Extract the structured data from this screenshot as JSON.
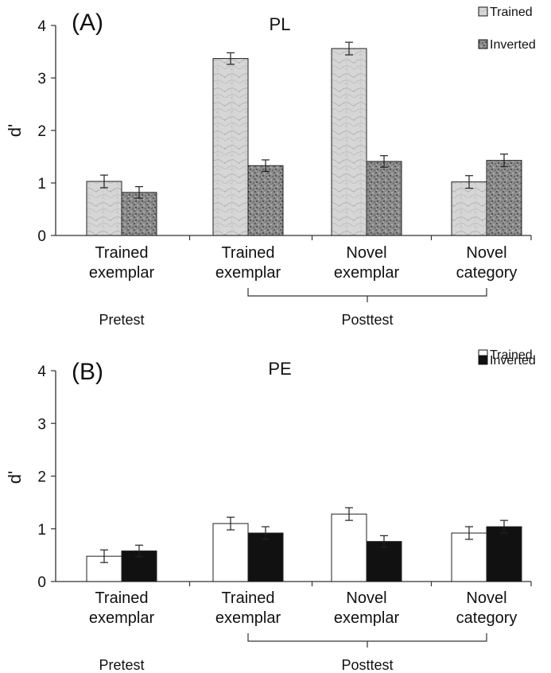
{
  "chart_data": [
    {
      "type": "bar",
      "panel_label": "(A)",
      "title": "PL",
      "ylabel": "d'",
      "ylim": [
        0,
        4
      ],
      "yticks": [
        "0",
        "1",
        "2",
        "3",
        "4"
      ],
      "categories": [
        [
          "Trained",
          "exemplar"
        ],
        [
          "Trained",
          "exemplar"
        ],
        [
          "Novel",
          "exemplar"
        ],
        [
          "Novel",
          "category"
        ]
      ],
      "groups": [
        {
          "label": "Pretest",
          "span": [
            0,
            0
          ],
          "bracket": false
        },
        {
          "label": "Posttest",
          "span": [
            1,
            3
          ],
          "bracket": true
        }
      ],
      "series": [
        {
          "name": "Trained",
          "values": [
            1.03,
            3.37,
            3.56,
            1.02
          ],
          "errors": [
            0.12,
            0.11,
            0.12,
            0.12
          ],
          "color": "#d4d4d4",
          "pattern": "marble-light"
        },
        {
          "name": "Inverted",
          "values": [
            0.82,
            1.33,
            1.41,
            1.43
          ],
          "errors": [
            0.11,
            0.11,
            0.11,
            0.12
          ],
          "color": "#7a7a7a",
          "pattern": "speckle-dark"
        }
      ],
      "legend_position": "top-right"
    },
    {
      "type": "bar",
      "panel_label": "(B)",
      "title": "PE",
      "ylabel": "d'",
      "ylim": [
        0,
        4
      ],
      "yticks": [
        "0",
        "1",
        "2",
        "3",
        "4"
      ],
      "categories": [
        [
          "Trained",
          "exemplar"
        ],
        [
          "Trained",
          "exemplar"
        ],
        [
          "Novel",
          "exemplar"
        ],
        [
          "Novel",
          "category"
        ]
      ],
      "groups": [
        {
          "label": "Pretest",
          "span": [
            0,
            0
          ],
          "bracket": false
        },
        {
          "label": "Posttest",
          "span": [
            1,
            3
          ],
          "bracket": true
        }
      ],
      "series": [
        {
          "name": "Trained",
          "values": [
            0.48,
            1.1,
            1.28,
            0.92
          ],
          "errors": [
            0.12,
            0.12,
            0.12,
            0.12
          ],
          "color": "#ffffff",
          "pattern": "solid"
        },
        {
          "name": "Inverted",
          "values": [
            0.58,
            0.92,
            0.76,
            1.04
          ],
          "errors": [
            0.11,
            0.12,
            0.11,
            0.12
          ],
          "color": "#111111",
          "pattern": "solid"
        }
      ],
      "legend_position": "top-right"
    }
  ]
}
